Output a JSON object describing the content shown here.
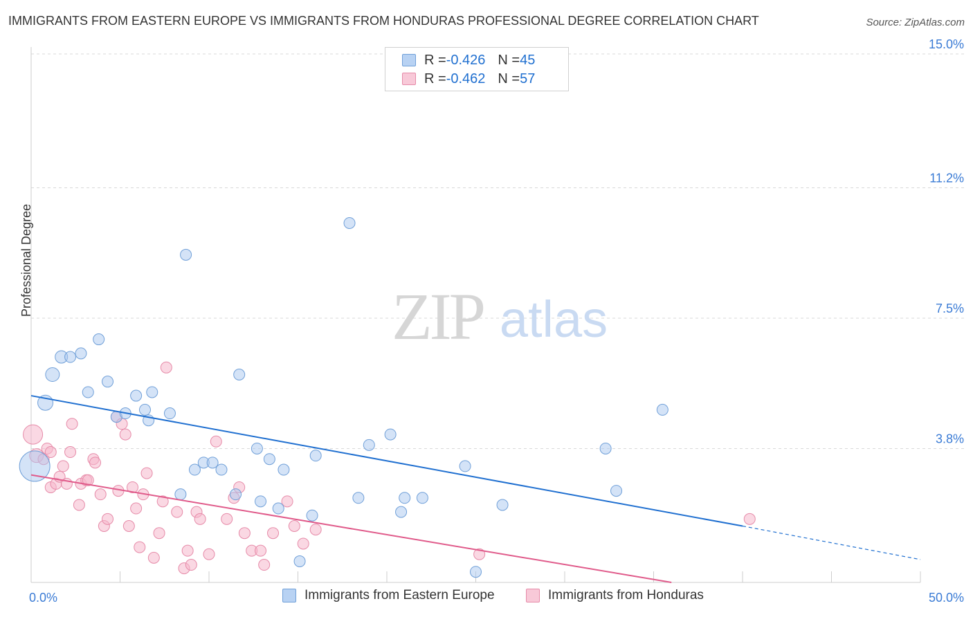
{
  "title": "IMMIGRANTS FROM EASTERN EUROPE VS IMMIGRANTS FROM HONDURAS PROFESSIONAL DEGREE CORRELATION CHART",
  "source": "Source: ZipAtlas.com",
  "watermark": {
    "zip": "ZIP",
    "atlas": "atlas"
  },
  "colors": {
    "blue_fill": "#a9c8f0",
    "blue_stroke": "#6f9fd8",
    "blue_line": "#1f6fd0",
    "pink_fill": "#f5b8cc",
    "pink_stroke": "#e68aa8",
    "pink_line": "#e05a8a",
    "axis_text": "#3a7bd5",
    "grid": "#d8d8d8"
  },
  "legend_top": {
    "series1": {
      "r_label": "R = ",
      "r_value": "-0.426",
      "n_label": "N = ",
      "n_value": "45"
    },
    "series2": {
      "r_label": "R = ",
      "r_value": "-0.462",
      "n_label": "N = ",
      "n_value": "57"
    }
  },
  "legend_bottom": {
    "series1": "Immigrants from Eastern Europe",
    "series2": "Immigrants from Honduras"
  },
  "chart_data": {
    "type": "scatter",
    "title": "IMMIGRANTS FROM EASTERN EUROPE VS IMMIGRANTS FROM HONDURAS PROFESSIONAL DEGREE CORRELATION CHART",
    "xlabel": "",
    "ylabel": "Professional Degree",
    "xlim": [
      0,
      50
    ],
    "ylim": [
      0,
      15
    ],
    "x_tick_labels": [
      "0.0%",
      "50.0%"
    ],
    "y_ticks": [
      3.8,
      7.5,
      11.2,
      15.0
    ],
    "y_tick_labels": [
      "3.8%",
      "7.5%",
      "11.2%",
      "15.0%"
    ],
    "grid": "horizontal dashed",
    "legend_position": "top-center",
    "series": [
      {
        "name": "Immigrants from Eastern Europe",
        "r": -0.426,
        "n": 45,
        "trend": {
          "x0": 0,
          "y0": 5.3,
          "x1": 40,
          "y1": 1.6,
          "dashed_to_x": 50,
          "dashed_to_y": 0.65
        },
        "points": [
          [
            0.2,
            3.3,
            22
          ],
          [
            0.8,
            5.1,
            11
          ],
          [
            1.2,
            5.9,
            10
          ],
          [
            1.7,
            6.4,
            9
          ],
          [
            2.8,
            6.5,
            8
          ],
          [
            2.2,
            6.4,
            8
          ],
          [
            3.8,
            6.9,
            8
          ],
          [
            3.2,
            5.4,
            8
          ],
          [
            4.3,
            5.7,
            8
          ],
          [
            4.8,
            4.7,
            8
          ],
          [
            5.3,
            4.8,
            8
          ],
          [
            5.9,
            5.3,
            8
          ],
          [
            6.4,
            4.9,
            8
          ],
          [
            6.6,
            4.6,
            8
          ],
          [
            6.8,
            5.4,
            8
          ],
          [
            7.8,
            4.8,
            8
          ],
          [
            8.7,
            9.3,
            8
          ],
          [
            9.2,
            3.2,
            8
          ],
          [
            9.7,
            3.4,
            8
          ],
          [
            10.2,
            3.4,
            8
          ],
          [
            10.7,
            3.2,
            8
          ],
          [
            8.4,
            2.5,
            8
          ],
          [
            11.5,
            2.5,
            8
          ],
          [
            11.7,
            5.9,
            8
          ],
          [
            12.7,
            3.8,
            8
          ],
          [
            12.9,
            2.3,
            8
          ],
          [
            13.4,
            3.5,
            8
          ],
          [
            13.9,
            2.1,
            8
          ],
          [
            14.2,
            3.2,
            8
          ],
          [
            16.0,
            3.6,
            8
          ],
          [
            15.8,
            1.9,
            8
          ],
          [
            17.9,
            10.2,
            8
          ],
          [
            18.4,
            2.4,
            8
          ],
          [
            19.0,
            3.9,
            8
          ],
          [
            20.2,
            4.2,
            8
          ],
          [
            21.0,
            2.4,
            8
          ],
          [
            20.8,
            2.0,
            8
          ],
          [
            22.0,
            2.4,
            8
          ],
          [
            15.1,
            0.6,
            8
          ],
          [
            25.0,
            0.3,
            8
          ],
          [
            24.4,
            3.3,
            8
          ],
          [
            26.5,
            2.2,
            8
          ],
          [
            32.3,
            3.8,
            8
          ],
          [
            32.9,
            2.6,
            8
          ],
          [
            35.5,
            4.9,
            8
          ]
        ]
      },
      {
        "name": "Immigrants from Honduras",
        "r": -0.462,
        "n": 57,
        "trend": {
          "x0": 0,
          "y0": 3.05,
          "x1": 36,
          "y1": 0.0
        },
        "points": [
          [
            0.1,
            4.2,
            14
          ],
          [
            0.3,
            3.6,
            10
          ],
          [
            0.7,
            3.5,
            8
          ],
          [
            0.9,
            3.8,
            8
          ],
          [
            1.1,
            3.7,
            8
          ],
          [
            1.1,
            2.7,
            8
          ],
          [
            1.4,
            2.8,
            8
          ],
          [
            1.6,
            3.0,
            8
          ],
          [
            1.8,
            3.3,
            8
          ],
          [
            2.0,
            2.8,
            8
          ],
          [
            2.2,
            3.7,
            8
          ],
          [
            2.3,
            4.5,
            8
          ],
          [
            2.7,
            2.2,
            8
          ],
          [
            2.8,
            2.8,
            8
          ],
          [
            3.1,
            2.9,
            8
          ],
          [
            3.2,
            2.9,
            8
          ],
          [
            3.5,
            3.5,
            8
          ],
          [
            3.6,
            3.4,
            8
          ],
          [
            3.9,
            2.5,
            8
          ],
          [
            4.1,
            1.6,
            8
          ],
          [
            4.3,
            1.8,
            8
          ],
          [
            4.8,
            4.7,
            8
          ],
          [
            4.9,
            2.6,
            8
          ],
          [
            5.1,
            4.5,
            8
          ],
          [
            5.3,
            4.2,
            8
          ],
          [
            5.5,
            1.6,
            8
          ],
          [
            5.7,
            2.7,
            8
          ],
          [
            5.9,
            2.1,
            8
          ],
          [
            6.1,
            1.0,
            8
          ],
          [
            6.3,
            2.5,
            8
          ],
          [
            6.5,
            3.1,
            8
          ],
          [
            6.9,
            0.7,
            8
          ],
          [
            7.2,
            1.4,
            8
          ],
          [
            7.4,
            2.3,
            8
          ],
          [
            7.6,
            6.1,
            8
          ],
          [
            8.2,
            2.0,
            8
          ],
          [
            8.6,
            0.4,
            8
          ],
          [
            8.8,
            0.9,
            8
          ],
          [
            9.0,
            0.5,
            8
          ],
          [
            9.3,
            2.0,
            8
          ],
          [
            9.5,
            1.8,
            8
          ],
          [
            10.0,
            0.8,
            8
          ],
          [
            10.4,
            4.0,
            8
          ],
          [
            11.0,
            1.8,
            8
          ],
          [
            11.4,
            2.4,
            8
          ],
          [
            11.7,
            2.7,
            8
          ],
          [
            12.0,
            1.4,
            8
          ],
          [
            12.4,
            0.9,
            8
          ],
          [
            12.9,
            0.9,
            8
          ],
          [
            13.1,
            0.5,
            8
          ],
          [
            13.6,
            1.4,
            8
          ],
          [
            14.4,
            2.3,
            8
          ],
          [
            14.8,
            1.6,
            8
          ],
          [
            15.3,
            1.1,
            8
          ],
          [
            16.0,
            1.5,
            8
          ],
          [
            25.2,
            0.8,
            8
          ],
          [
            40.4,
            1.8,
            8
          ]
        ]
      }
    ]
  }
}
